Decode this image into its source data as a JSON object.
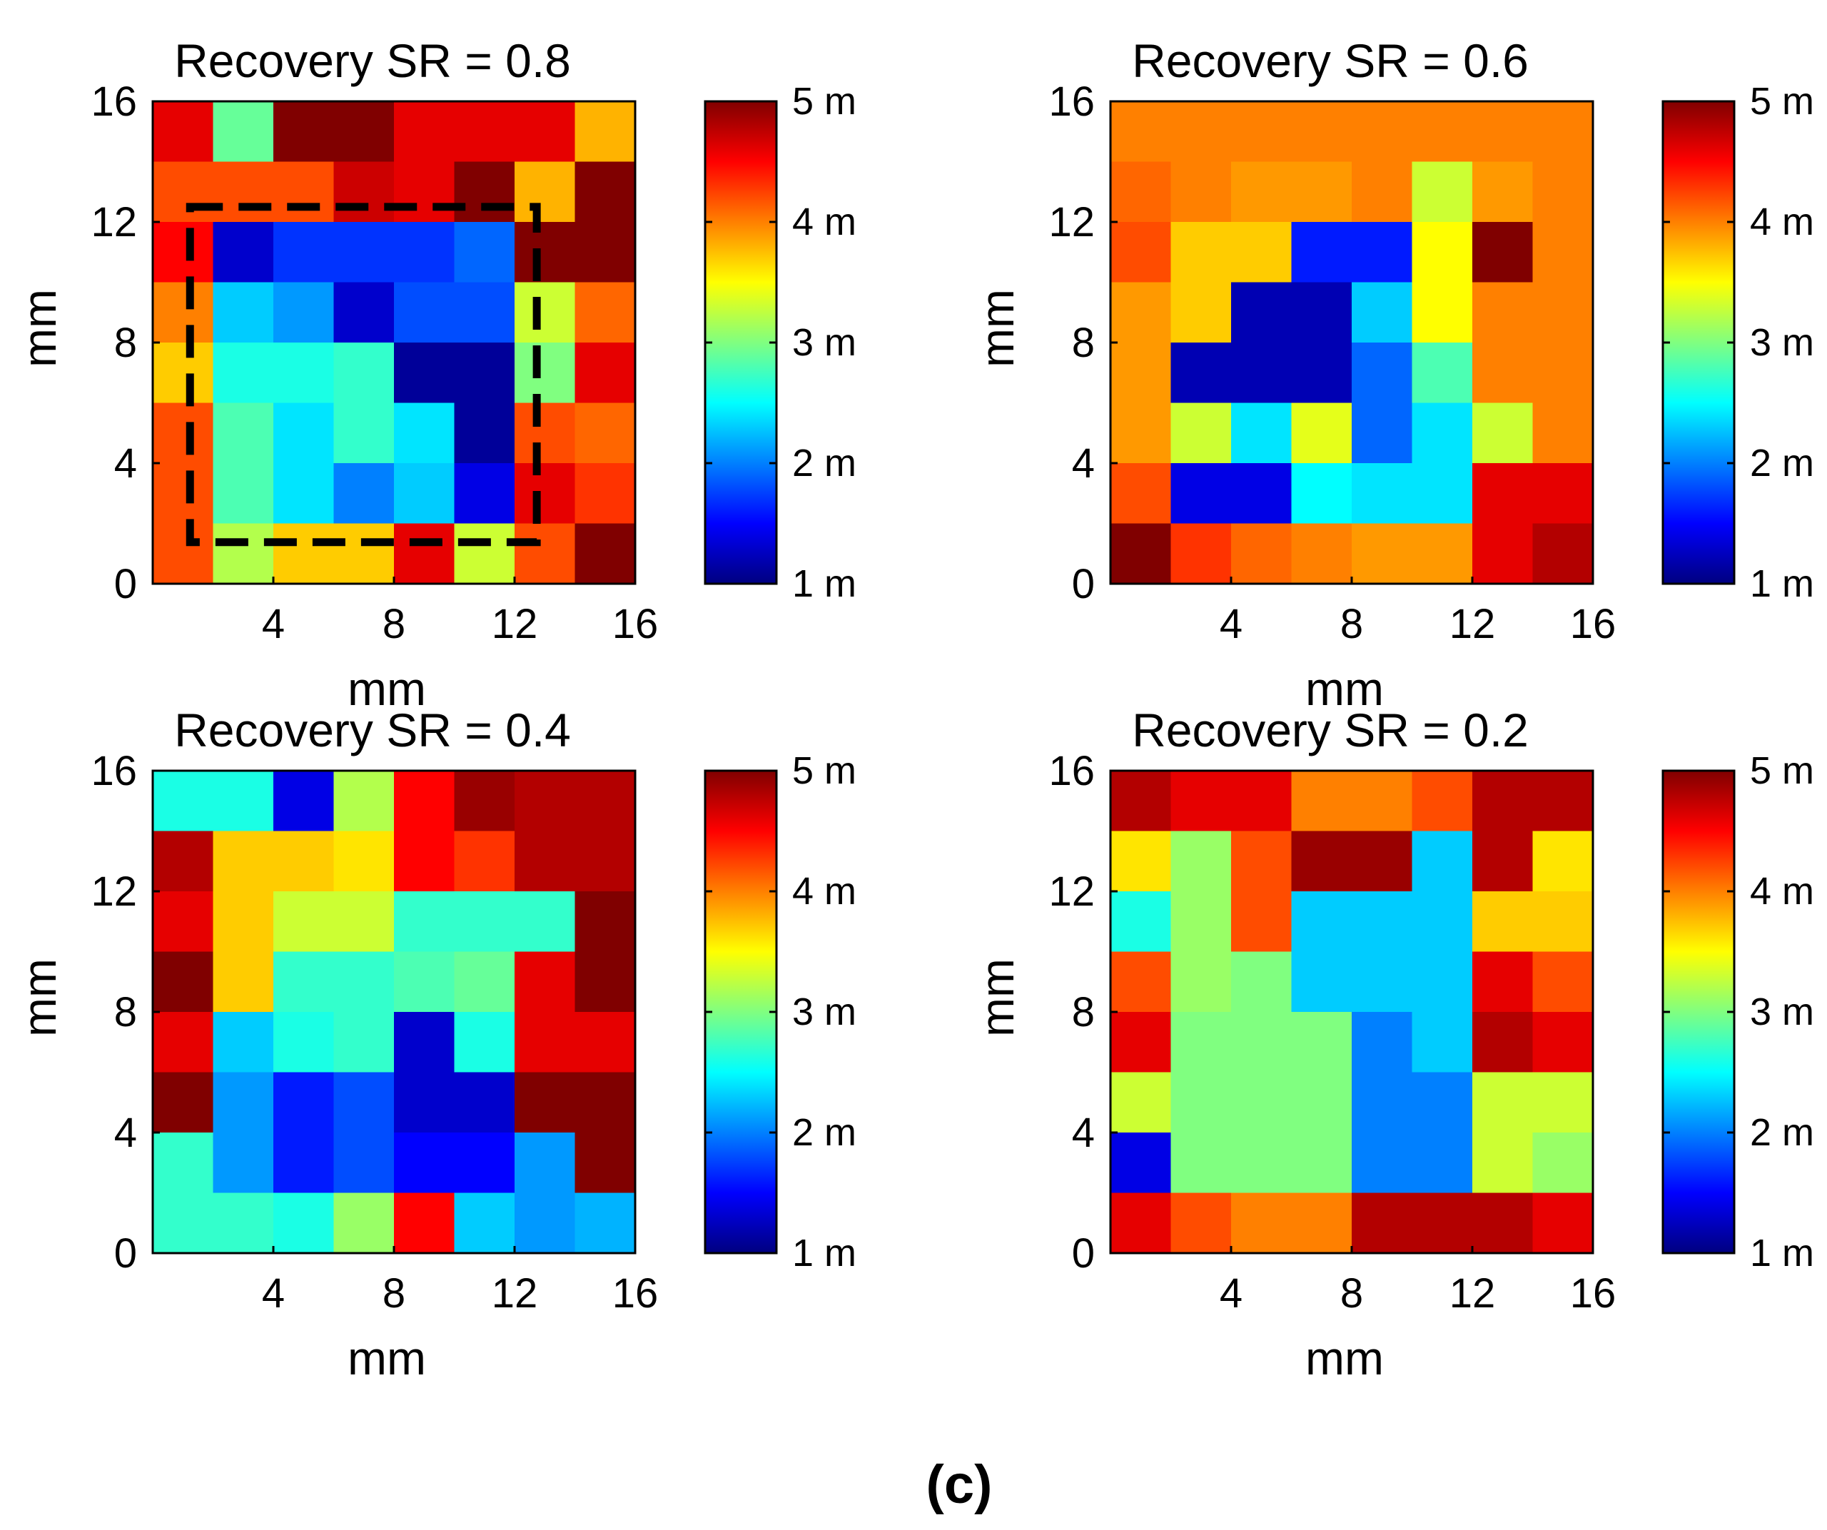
{
  "caption": "(c)",
  "colorbar": {
    "min": 1,
    "max": 5,
    "ticks": [
      1,
      2,
      3,
      4,
      5
    ],
    "tick_labels": [
      "1 m",
      "2 m",
      "3 m",
      "4 m",
      "5 m"
    ],
    "colormap": "jet"
  },
  "chart_data": [
    {
      "type": "heatmap",
      "title": "Recovery SR = 0.8",
      "xlabel": "mm",
      "ylabel": "mm",
      "xlim": [
        0,
        16
      ],
      "ylim": [
        0,
        16
      ],
      "x_ticks": [
        4,
        8,
        12,
        16
      ],
      "y_ticks": [
        0,
        4,
        8,
        12,
        16
      ],
      "grid_size": 8,
      "cell_size_mm": 2,
      "value_range": [
        1,
        5
      ],
      "values": [
        [
          4.6,
          2.9,
          5.0,
          5.0,
          4.6,
          4.6,
          4.6,
          3.8
        ],
        [
          4.2,
          4.2,
          4.2,
          4.7,
          4.6,
          5.0,
          3.8,
          5.0
        ],
        [
          4.5,
          1.3,
          1.7,
          1.7,
          1.7,
          1.9,
          5.0,
          5.0
        ],
        [
          4.0,
          2.3,
          2.1,
          1.3,
          1.8,
          1.8,
          3.3,
          4.1
        ],
        [
          3.7,
          2.6,
          2.6,
          2.7,
          1.1,
          1.1,
          3.0,
          4.6
        ],
        [
          4.2,
          2.8,
          2.4,
          2.7,
          2.4,
          1.1,
          4.2,
          4.1
        ],
        [
          4.2,
          2.8,
          2.4,
          2.0,
          2.3,
          1.4,
          4.6,
          4.3
        ],
        [
          4.2,
          3.2,
          3.7,
          3.7,
          4.6,
          3.3,
          4.2,
          5.0
        ]
      ],
      "annotation": "dashed rectangle outlining region from about 1 to 13 mm"
    },
    {
      "type": "heatmap",
      "title": "Recovery SR = 0.6",
      "xlabel": "mm",
      "ylabel": "mm",
      "xlim": [
        0,
        16
      ],
      "ylim": [
        0,
        16
      ],
      "x_ticks": [
        4,
        8,
        12,
        16
      ],
      "y_ticks": [
        0,
        4,
        8,
        12,
        16
      ],
      "grid_size": 8,
      "cell_size_mm": 2,
      "value_range": [
        1,
        5
      ],
      "values": [
        [
          4.0,
          4.0,
          4.0,
          4.0,
          4.0,
          4.0,
          4.0,
          4.0
        ],
        [
          4.1,
          4.0,
          3.9,
          3.9,
          4.0,
          3.3,
          3.9,
          4.0
        ],
        [
          4.2,
          3.7,
          3.7,
          1.6,
          1.6,
          3.5,
          5.0,
          4.0
        ],
        [
          3.9,
          3.7,
          1.2,
          1.2,
          2.3,
          3.5,
          4.0,
          4.0
        ],
        [
          3.9,
          1.2,
          1.2,
          1.2,
          1.9,
          2.8,
          4.0,
          4.0
        ],
        [
          3.9,
          3.3,
          2.4,
          3.4,
          1.9,
          2.4,
          3.3,
          4.0
        ],
        [
          4.2,
          1.4,
          1.4,
          2.5,
          2.4,
          2.4,
          4.6,
          4.6
        ],
        [
          5.0,
          4.3,
          4.1,
          4.0,
          3.9,
          3.9,
          4.6,
          4.8
        ]
      ]
    },
    {
      "type": "heatmap",
      "title": "Recovery SR = 0.4",
      "xlabel": "mm",
      "ylabel": "mm",
      "xlim": [
        0,
        16
      ],
      "ylim": [
        0,
        16
      ],
      "x_ticks": [
        4,
        8,
        12,
        16
      ],
      "y_ticks": [
        0,
        4,
        8,
        12,
        16
      ],
      "grid_size": 8,
      "cell_size_mm": 2,
      "value_range": [
        1,
        5
      ],
      "values": [
        [
          2.6,
          2.6,
          1.4,
          3.2,
          4.5,
          4.9,
          4.8,
          4.8
        ],
        [
          4.8,
          3.7,
          3.7,
          3.6,
          4.5,
          4.3,
          4.8,
          4.8
        ],
        [
          4.6,
          3.7,
          3.3,
          3.3,
          2.7,
          2.7,
          2.7,
          5.0
        ],
        [
          5.0,
          3.7,
          2.7,
          2.7,
          2.8,
          2.9,
          4.6,
          5.0
        ],
        [
          4.6,
          2.3,
          2.6,
          2.7,
          1.3,
          2.6,
          4.6,
          4.6
        ],
        [
          5.0,
          2.1,
          1.6,
          1.8,
          1.3,
          1.3,
          5.0,
          5.0
        ],
        [
          2.7,
          2.1,
          1.6,
          1.8,
          1.5,
          1.5,
          2.1,
          5.0
        ],
        [
          2.7,
          2.7,
          2.6,
          3.1,
          4.5,
          2.3,
          2.1,
          2.2
        ]
      ]
    },
    {
      "type": "heatmap",
      "title": "Recovery SR = 0.2",
      "xlabel": "mm",
      "ylabel": "mm",
      "xlim": [
        0,
        16
      ],
      "ylim": [
        0,
        16
      ],
      "x_ticks": [
        4,
        8,
        12,
        16
      ],
      "y_ticks": [
        0,
        4,
        8,
        12,
        16
      ],
      "grid_size": 8,
      "cell_size_mm": 2,
      "value_range": [
        1,
        5
      ],
      "values": [
        [
          4.8,
          4.6,
          4.6,
          4.0,
          4.0,
          4.2,
          4.8,
          4.8
        ],
        [
          3.6,
          3.1,
          4.2,
          4.9,
          4.9,
          2.3,
          4.8,
          3.6
        ],
        [
          2.6,
          3.1,
          4.2,
          2.3,
          2.3,
          2.3,
          3.7,
          3.7
        ],
        [
          4.2,
          3.1,
          3.0,
          2.3,
          2.3,
          2.3,
          4.6,
          4.2
        ],
        [
          4.6,
          3.0,
          3.0,
          3.0,
          2.0,
          2.3,
          4.8,
          4.6
        ],
        [
          3.3,
          3.0,
          3.0,
          3.0,
          2.0,
          2.0,
          3.3,
          3.3
        ],
        [
          1.4,
          3.0,
          3.0,
          3.0,
          2.0,
          2.0,
          3.3,
          3.1
        ],
        [
          4.6,
          4.2,
          4.0,
          4.0,
          4.8,
          4.8,
          4.8,
          4.6
        ]
      ]
    }
  ]
}
